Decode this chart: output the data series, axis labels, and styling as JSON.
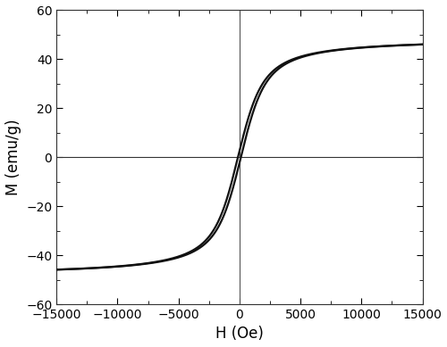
{
  "xlim": [
    -15000,
    15000
  ],
  "ylim": [
    -60,
    60
  ],
  "xlabel": "H (Oe)",
  "ylabel": "M (emu/g)",
  "xlabel_fontsize": 12,
  "ylabel_fontsize": 12,
  "tick_fontsize": 10,
  "saturation_M": 48.5,
  "coercivity": 120,
  "a_param": 800,
  "line_color": "#111111",
  "line_width": 1.6,
  "vline_color": "#555555",
  "hline_color": "#333333",
  "background_color": "#ffffff",
  "figsize": [
    5.0,
    3.89
  ],
  "dpi": 100
}
